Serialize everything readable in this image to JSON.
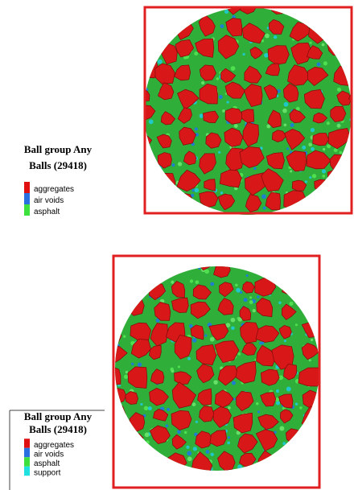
{
  "panels": [
    {
      "legend": {
        "title": [
          "Ball group Any",
          "Balls (29418)"
        ],
        "items": [
          {
            "label": "aggregates",
            "color": "#e01010"
          },
          {
            "label": "air voids",
            "color": "#2a6fe0"
          },
          {
            "label": "asphalt",
            "color": "#3ee03e"
          }
        ]
      }
    },
    {
      "legend": {
        "title": [
          "Ball group Any",
          "Balls (29418)"
        ],
        "items": [
          {
            "label": "aggregates",
            "color": "#e01010"
          },
          {
            "label": "air voids",
            "color": "#2a6fe0"
          },
          {
            "label": "asphalt",
            "color": "#3ee03e"
          },
          {
            "label": "support",
            "color": "#20e0e0"
          }
        ]
      }
    }
  ]
}
